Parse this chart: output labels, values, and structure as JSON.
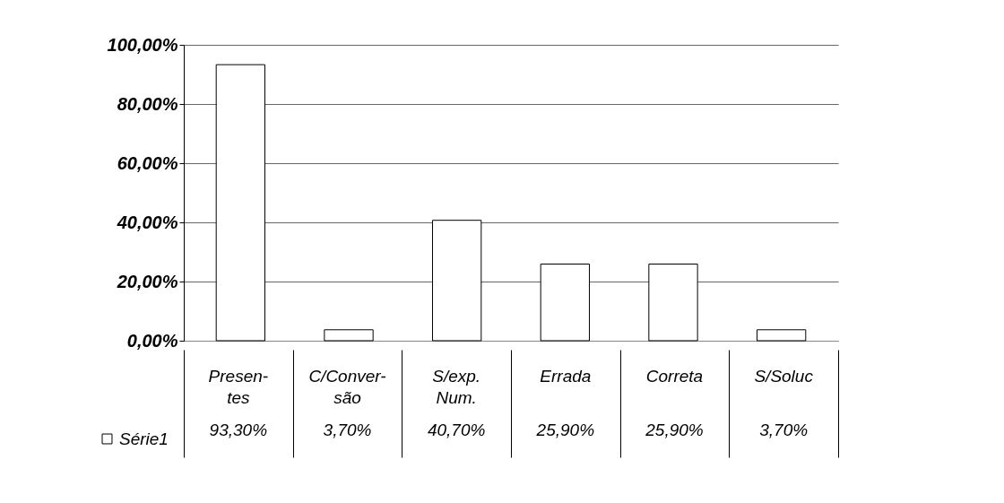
{
  "chart_data": {
    "type": "bar",
    "categories": [
      "Presen-tes",
      "C/Conver-são",
      "S/exp. Num.",
      "Errada",
      "Correta",
      "S/Soluc"
    ],
    "series": [
      {
        "name": "Série1",
        "color": "#ffffff",
        "values": [
          93.3,
          3.7,
          40.7,
          25.9,
          25.9,
          3.7
        ],
        "value_labels": [
          "93,30%",
          "3,70%",
          "40,70%",
          "25,90%",
          "25,90%",
          "3,70%"
        ]
      }
    ],
    "ylim": [
      0,
      100
    ],
    "yticks": [
      {
        "value": 0,
        "label": "0,00%"
      },
      {
        "value": 20,
        "label": "20,00%"
      },
      {
        "value": 40,
        "label": "40,00%"
      },
      {
        "value": 60,
        "label": "60,00%"
      },
      {
        "value": 80,
        "label": "80,00%"
      },
      {
        "value": 100,
        "label": "100,00%"
      }
    ],
    "grid": "y",
    "legend": "bottom left"
  }
}
